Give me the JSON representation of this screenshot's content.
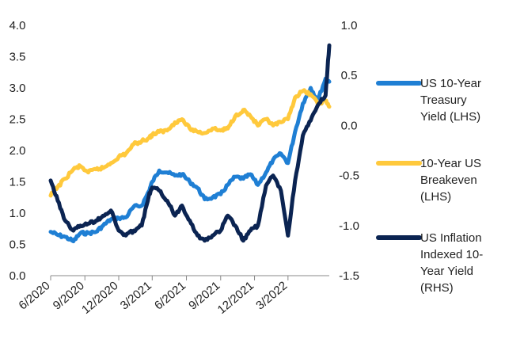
{
  "chart_data": {
    "type": "line",
    "title": "",
    "xlabel": "",
    "ylabel_left": "",
    "ylabel_right": "",
    "ylim_left": [
      0.0,
      4.0
    ],
    "ylim_right": [
      -1.5,
      1.0
    ],
    "yticks_left": [
      "4.0",
      "3.5",
      "3.0",
      "2.5",
      "2.0",
      "1.5",
      "1.0",
      "0.5",
      "0.0"
    ],
    "yticks_right": [
      "1.0",
      "0.5",
      "0.0",
      "-0.5",
      "-1.0",
      "-1.5"
    ],
    "xticks": [
      "6/2020",
      "9/2020",
      "12/2020",
      "3/2021",
      "6/2021",
      "9/2021",
      "12/2021",
      "3/2022"
    ],
    "grid": false,
    "legend_position": "right",
    "series": [
      {
        "name": "US 10-Year Treasury Yield (LHS)",
        "axis": "left",
        "color": "#1f7fd4",
        "points": [
          [
            "2020-06-01",
            0.7
          ],
          [
            "2020-06-20",
            0.65
          ],
          [
            "2020-07-10",
            0.62
          ],
          [
            "2020-08-01",
            0.55
          ],
          [
            "2020-08-20",
            0.68
          ],
          [
            "2020-09-10",
            0.68
          ],
          [
            "2020-10-01",
            0.7
          ],
          [
            "2020-10-20",
            0.8
          ],
          [
            "2020-11-10",
            0.9
          ],
          [
            "2020-12-01",
            0.92
          ],
          [
            "2020-12-20",
            0.93
          ],
          [
            "2021-01-10",
            1.1
          ],
          [
            "2021-02-01",
            1.12
          ],
          [
            "2021-02-20",
            1.35
          ],
          [
            "2021-03-01",
            1.5
          ],
          [
            "2021-03-20",
            1.68
          ],
          [
            "2021-04-10",
            1.65
          ],
          [
            "2021-05-01",
            1.6
          ],
          [
            "2021-05-20",
            1.62
          ],
          [
            "2021-06-10",
            1.5
          ],
          [
            "2021-07-01",
            1.4
          ],
          [
            "2021-07-20",
            1.22
          ],
          [
            "2021-08-10",
            1.25
          ],
          [
            "2021-09-01",
            1.3
          ],
          [
            "2021-09-20",
            1.45
          ],
          [
            "2021-10-10",
            1.58
          ],
          [
            "2021-11-01",
            1.55
          ],
          [
            "2021-11-20",
            1.62
          ],
          [
            "2021-12-10",
            1.45
          ],
          [
            "2022-01-01",
            1.65
          ],
          [
            "2022-01-20",
            1.85
          ],
          [
            "2022-02-10",
            1.95
          ],
          [
            "2022-03-01",
            1.8
          ],
          [
            "2022-03-20",
            2.3
          ],
          [
            "2022-04-10",
            2.75
          ],
          [
            "2022-05-01",
            3.0
          ],
          [
            "2022-05-20",
            2.8
          ],
          [
            "2022-06-10",
            3.15
          ],
          [
            "2022-06-20",
            3.1
          ]
        ]
      },
      {
        "name": "10-Year US Breakeven (LHS)",
        "axis": "left",
        "color": "#ffc93c",
        "points": [
          [
            "2020-06-01",
            1.28
          ],
          [
            "2020-06-20",
            1.42
          ],
          [
            "2020-07-10",
            1.55
          ],
          [
            "2020-08-01",
            1.7
          ],
          [
            "2020-08-20",
            1.75
          ],
          [
            "2020-09-10",
            1.65
          ],
          [
            "2020-10-01",
            1.7
          ],
          [
            "2020-10-20",
            1.72
          ],
          [
            "2020-11-10",
            1.8
          ],
          [
            "2020-12-01",
            1.9
          ],
          [
            "2020-12-20",
            1.95
          ],
          [
            "2021-01-10",
            2.1
          ],
          [
            "2021-02-01",
            2.15
          ],
          [
            "2021-02-20",
            2.2
          ],
          [
            "2021-03-01",
            2.25
          ],
          [
            "2021-03-20",
            2.3
          ],
          [
            "2021-04-10",
            2.32
          ],
          [
            "2021-05-01",
            2.45
          ],
          [
            "2021-05-20",
            2.5
          ],
          [
            "2021-06-10",
            2.35
          ],
          [
            "2021-07-01",
            2.3
          ],
          [
            "2021-07-20",
            2.28
          ],
          [
            "2021-08-10",
            2.35
          ],
          [
            "2021-09-01",
            2.32
          ],
          [
            "2021-09-20",
            2.35
          ],
          [
            "2021-10-10",
            2.55
          ],
          [
            "2021-11-01",
            2.65
          ],
          [
            "2021-11-20",
            2.55
          ],
          [
            "2021-12-10",
            2.4
          ],
          [
            "2022-01-01",
            2.5
          ],
          [
            "2022-01-20",
            2.4
          ],
          [
            "2022-02-10",
            2.45
          ],
          [
            "2022-03-01",
            2.5
          ],
          [
            "2022-03-20",
            2.85
          ],
          [
            "2022-04-10",
            2.95
          ],
          [
            "2022-05-01",
            2.9
          ],
          [
            "2022-05-20",
            2.75
          ],
          [
            "2022-06-10",
            2.8
          ],
          [
            "2022-06-20",
            2.7
          ]
        ]
      },
      {
        "name": "US Inflation Indexed 10-Year Yield (RHS)",
        "axis": "right",
        "color": "#0b2452",
        "points": [
          [
            "2020-06-01",
            -0.55
          ],
          [
            "2020-06-20",
            -0.75
          ],
          [
            "2020-07-10",
            -0.95
          ],
          [
            "2020-08-01",
            -1.05
          ],
          [
            "2020-08-20",
            -1.0
          ],
          [
            "2020-09-10",
            -0.98
          ],
          [
            "2020-10-01",
            -0.95
          ],
          [
            "2020-10-20",
            -0.9
          ],
          [
            "2020-11-10",
            -0.85
          ],
          [
            "2020-12-01",
            -1.05
          ],
          [
            "2020-12-20",
            -1.1
          ],
          [
            "2021-01-10",
            -1.05
          ],
          [
            "2021-02-01",
            -1.0
          ],
          [
            "2021-02-20",
            -0.7
          ],
          [
            "2021-03-01",
            -0.62
          ],
          [
            "2021-03-20",
            -0.65
          ],
          [
            "2021-04-10",
            -0.75
          ],
          [
            "2021-05-01",
            -0.9
          ],
          [
            "2021-05-20",
            -0.8
          ],
          [
            "2021-06-10",
            -0.95
          ],
          [
            "2021-07-01",
            -1.1
          ],
          [
            "2021-07-20",
            -1.15
          ],
          [
            "2021-08-10",
            -1.1
          ],
          [
            "2021-09-01",
            -1.05
          ],
          [
            "2021-09-20",
            -0.9
          ],
          [
            "2021-10-10",
            -1.0
          ],
          [
            "2021-11-01",
            -1.15
          ],
          [
            "2021-11-20",
            -1.05
          ],
          [
            "2021-12-10",
            -1.0
          ],
          [
            "2022-01-01",
            -0.6
          ],
          [
            "2022-01-20",
            -0.5
          ],
          [
            "2022-02-10",
            -0.65
          ],
          [
            "2022-03-01",
            -1.1
          ],
          [
            "2022-03-20",
            -0.55
          ],
          [
            "2022-04-10",
            -0.1
          ],
          [
            "2022-05-01",
            0.05
          ],
          [
            "2022-05-20",
            0.2
          ],
          [
            "2022-06-10",
            0.3
          ],
          [
            "2022-06-20",
            0.8
          ]
        ]
      }
    ]
  },
  "legend": [
    {
      "lines": [
        "US 10-Year",
        "Treasury",
        "Yield (LHS)"
      ],
      "color": "#1f7fd4"
    },
    {
      "lines": [
        "10-Year US",
        "Breakeven",
        "(LHS)"
      ],
      "color": "#ffc93c"
    },
    {
      "lines": [
        "US Inflation",
        "Indexed 10-",
        "Year Yield",
        "(RHS)"
      ],
      "color": "#0b2452"
    }
  ]
}
